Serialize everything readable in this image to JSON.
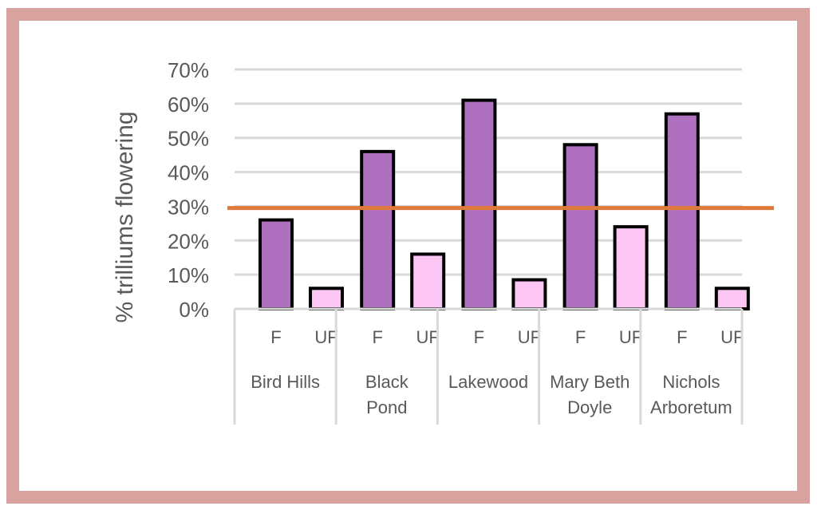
{
  "chart_data": {
    "type": "bar",
    "ylabel": "% trilliums flowering",
    "y_ticks": [
      "0%",
      "10%",
      "20%",
      "30%",
      "40%",
      "50%",
      "60%",
      "70%"
    ],
    "ylim": [
      0,
      70
    ],
    "grid": true,
    "groups": [
      {
        "label_lines": [
          "Bird Hills"
        ],
        "bars": [
          {
            "label": "F",
            "value": 26
          },
          {
            "label": "UF",
            "value": 6
          }
        ]
      },
      {
        "label_lines": [
          "Black",
          "Pond"
        ],
        "bars": [
          {
            "label": "F",
            "value": 46
          },
          {
            "label": "UF",
            "value": 16
          }
        ]
      },
      {
        "label_lines": [
          "Lakewood"
        ],
        "bars": [
          {
            "label": "F",
            "value": 61
          },
          {
            "label": "UF",
            "value": 8.5
          }
        ]
      },
      {
        "label_lines": [
          "Mary Beth",
          "Doyle"
        ],
        "bars": [
          {
            "label": "F",
            "value": 48
          },
          {
            "label": "UF",
            "value": 24
          }
        ]
      },
      {
        "label_lines": [
          "Nichols",
          "Arboretum"
        ],
        "bars": [
          {
            "label": "F",
            "value": 57
          },
          {
            "label": "UF",
            "value": 6
          }
        ]
      }
    ],
    "reference_line": {
      "value": 29.5,
      "color": "#e07a3a"
    },
    "colors": {
      "F": "#b070c0",
      "UF": "#fcc6f4",
      "grid": "#d9d9d9"
    }
  }
}
